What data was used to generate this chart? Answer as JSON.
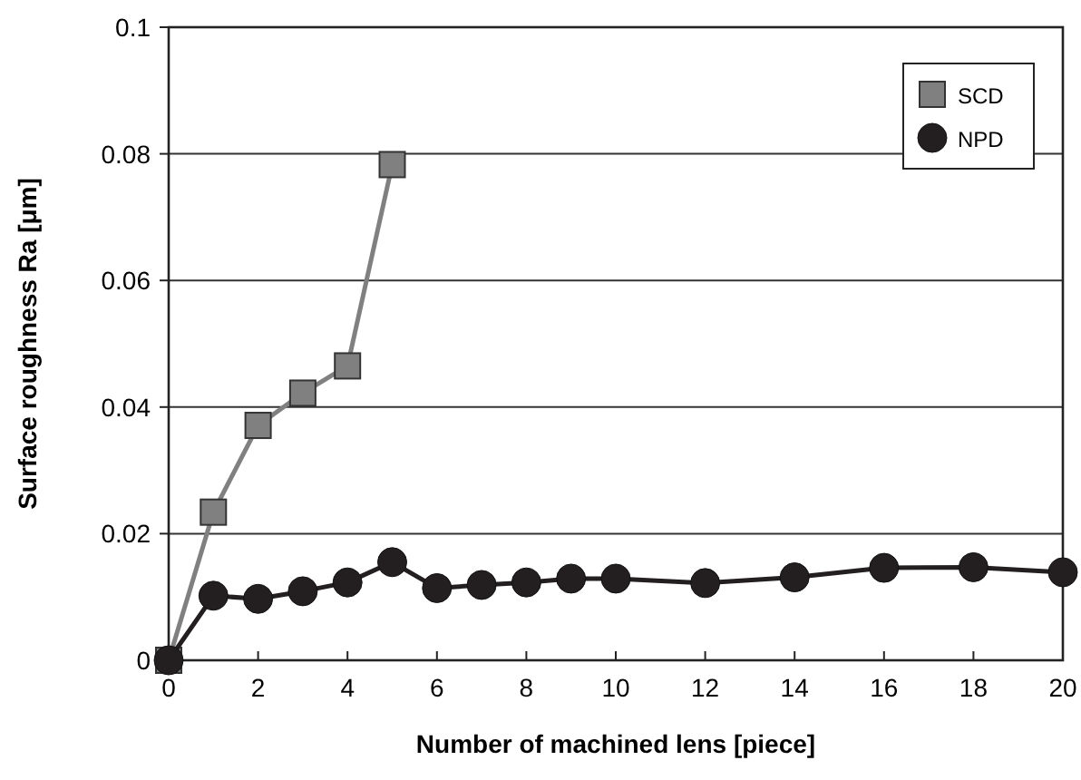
{
  "chart_data": {
    "type": "line",
    "xlabel": "Number of machined lens [piece]",
    "ylabel": "Surface roughness Ra [μm]",
    "xlim": [
      0,
      20
    ],
    "xticks": [
      0,
      2,
      4,
      6,
      8,
      10,
      12,
      14,
      16,
      18,
      20
    ],
    "ylim": [
      0,
      0.1
    ],
    "yticks": [
      0,
      0.02,
      0.04,
      0.06,
      0.08,
      0.1
    ],
    "grid": "y",
    "legend": "top right",
    "series": [
      {
        "name": "SCD",
        "color": "#808080",
        "marker": "square",
        "x": [
          0,
          1,
          2,
          3,
          4,
          5
        ],
        "values": [
          0,
          0.0234,
          0.0371,
          0.0422,
          0.0465,
          0.0783
        ]
      },
      {
        "name": "NPD",
        "color": "#231f20",
        "marker": "circle",
        "x": [
          0,
          1,
          2,
          3,
          4,
          5,
          6,
          7,
          8,
          9,
          10,
          12,
          14,
          16,
          18,
          20
        ],
        "values": [
          0,
          0.0102,
          0.0097,
          0.0109,
          0.0123,
          0.0155,
          0.0114,
          0.0119,
          0.0123,
          0.0129,
          0.0129,
          0.0122,
          0.0131,
          0.0146,
          0.0147,
          0.0139
        ]
      }
    ]
  }
}
